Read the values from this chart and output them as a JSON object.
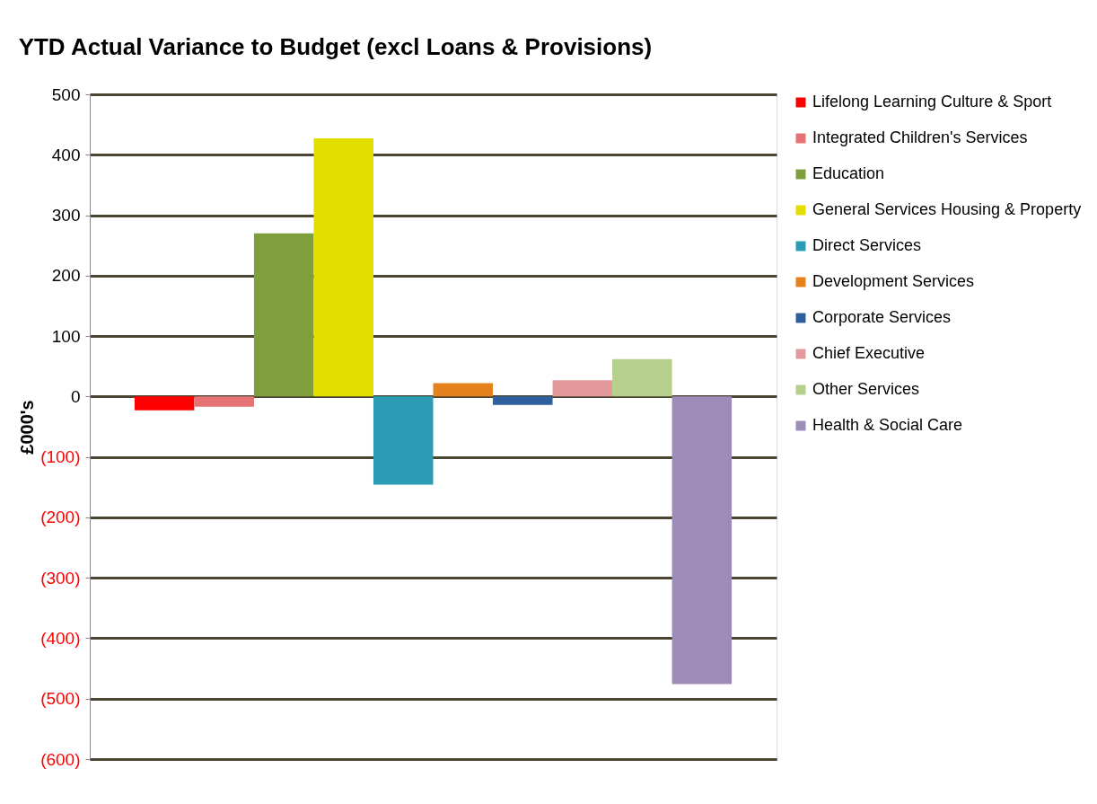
{
  "chart_data": {
    "type": "bar",
    "title": "YTD Actual Variance to Budget (excl Loans & Provisions)",
    "ylabel": "£000's",
    "categories": [
      null
    ],
    "series": [
      {
        "name": "Lifelong Learning Culture & Sport",
        "color": "#ff0000",
        "values": [
          -23
        ]
      },
      {
        "name": "Integrated Children's Services",
        "color": "#e57373",
        "values": [
          -17
        ]
      },
      {
        "name": "Education",
        "color": "#7f9f3d",
        "values": [
          270
        ]
      },
      {
        "name": "General Services Housing & Property",
        "color": "#e3dd00",
        "values": [
          427
        ]
      },
      {
        "name": "Direct Services",
        "color": "#2b9cb4",
        "values": [
          -146
        ]
      },
      {
        "name": "Development Services",
        "color": "#e6821e",
        "values": [
          22
        ]
      },
      {
        "name": "Corporate Services",
        "color": "#2f5f9e",
        "values": [
          -14
        ]
      },
      {
        "name": "Chief Executive",
        "color": "#e49a9a",
        "values": [
          27
        ]
      },
      {
        "name": "Other Services",
        "color": "#b5d08c",
        "values": [
          62
        ]
      },
      {
        "name": "Health & Social Care",
        "color": "#9d8bb8",
        "values": [
          -476
        ]
      }
    ],
    "ylim": [
      -600,
      500
    ],
    "yticks": [
      500,
      400,
      300,
      200,
      100,
      0,
      {
        "value": -100,
        "label": "(100)"
      },
      {
        "value": -200,
        "label": "(200)"
      },
      {
        "value": -300,
        "label": "(300)"
      },
      {
        "value": -400,
        "label": "(400)"
      },
      {
        "value": -500,
        "label": "(500)"
      },
      {
        "value": -600,
        "label": "(600)"
      }
    ],
    "grid": "y",
    "legend": "right",
    "tick_labels": "y"
  }
}
